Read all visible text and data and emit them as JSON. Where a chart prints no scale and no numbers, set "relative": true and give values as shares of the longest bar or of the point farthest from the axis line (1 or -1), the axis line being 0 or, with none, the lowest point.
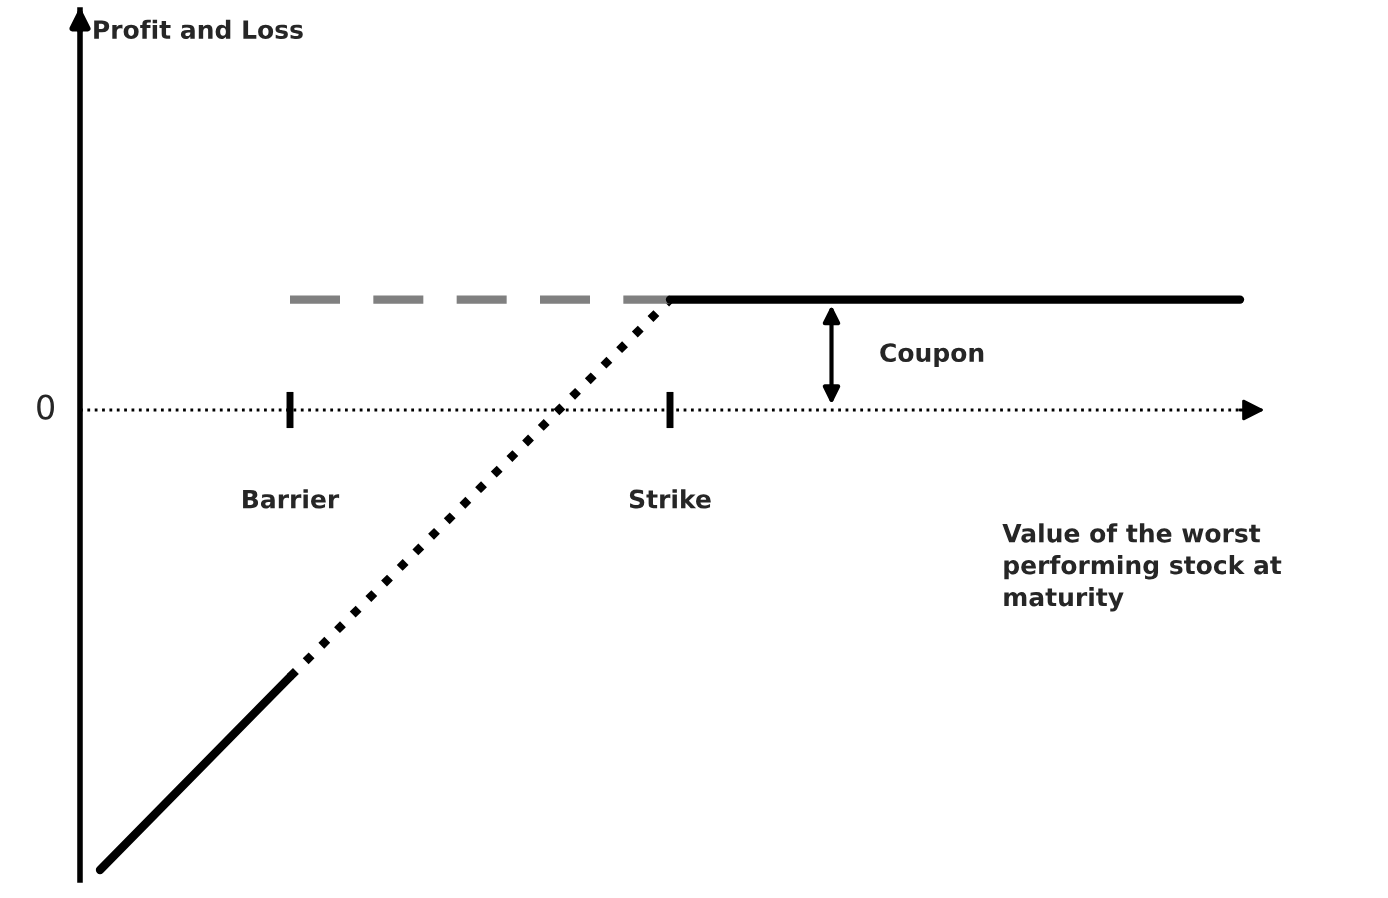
{
  "chart_data": {
    "type": "line",
    "relative": true,
    "xlabel": "Value of the worst performing stock at maturity",
    "categories": [
      null,
      "Barrier",
      null,
      "Strike",
      null,
      null,
      null
    ],
    "series": [
      {
        "color": "#000000",
        "line_style": "solid",
        "values": [
          -1,
          -0.58,
          null,
          null,
          null,
          null,
          null
        ]
      },
      {
        "color": "#000000",
        "line_style": "dotted",
        "values": [
          null,
          -0.58,
          -0.17,
          0.24,
          null,
          null,
          null
        ]
      },
      {
        "color": "#808080",
        "line_style": "dashed",
        "values": [
          null,
          0.24,
          0.24,
          0.24,
          null,
          null,
          null
        ]
      },
      {
        "color": "#000000",
        "line_style": "solid",
        "values": [
          null,
          null,
          null,
          0.24,
          0.24,
          0.24,
          0.24
        ]
      }
    ],
    "ref_lines": [
      {
        "axis": "y",
        "value": 0,
        "label": "0",
        "line_style": "dotted",
        "color": "#000000"
      }
    ],
    "annotations": [
      "Coupon",
      "Profit and Loss"
    ],
    "marker": "none",
    "legend": false
  }
}
